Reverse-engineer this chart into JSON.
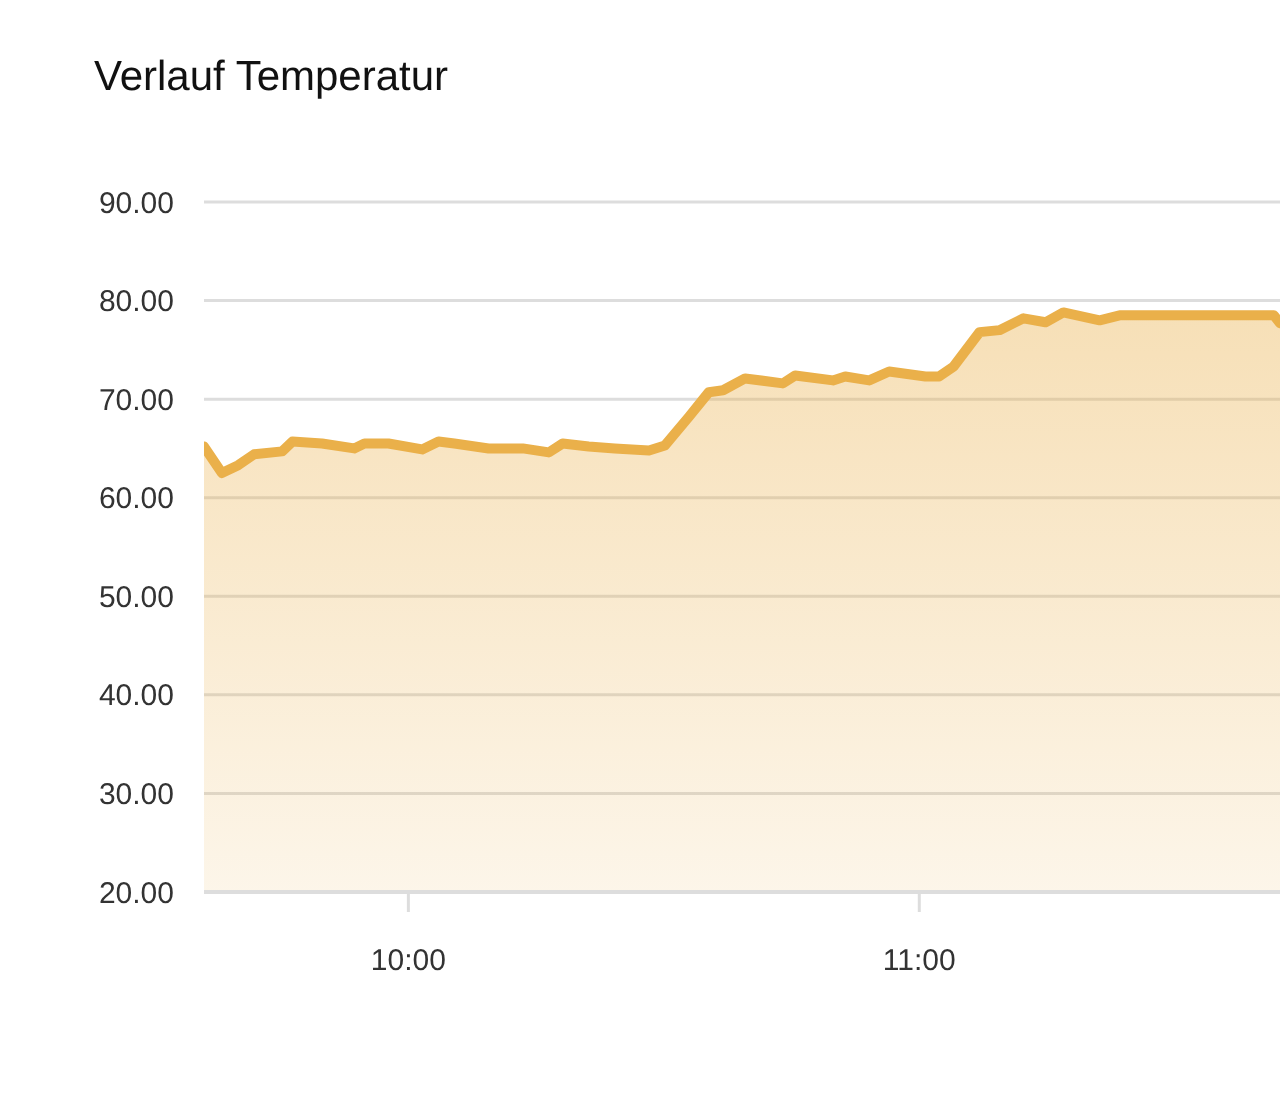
{
  "chart_data": {
    "type": "area",
    "title": "Verlauf Temperatur",
    "xlim": [
      9.6,
      11.706
    ],
    "xticks": [
      {
        "value": 10,
        "label": "10:00"
      },
      {
        "value": 11,
        "label": "11:00"
      }
    ],
    "ylim": [
      20,
      90
    ],
    "yticks": [
      {
        "value": 20,
        "label": "20.00"
      },
      {
        "value": 30,
        "label": "30.00"
      },
      {
        "value": 40,
        "label": "40.00"
      },
      {
        "value": 50,
        "label": "50.00"
      },
      {
        "value": 60,
        "label": "60.00"
      },
      {
        "value": 70,
        "label": "70.00"
      },
      {
        "value": 80,
        "label": "80.00"
      },
      {
        "value": 90,
        "label": "90.00"
      }
    ],
    "grid": "y",
    "marker": "none",
    "line_style": "solid",
    "series": [
      {
        "color": "#eab04a",
        "x": [
          9.6,
          9.635,
          9.667,
          9.698,
          9.753,
          9.773,
          9.831,
          9.894,
          9.914,
          9.961,
          10.027,
          10.059,
          10.09,
          10.157,
          10.224,
          10.275,
          10.302,
          10.353,
          10.404,
          10.471,
          10.502,
          10.549,
          10.588,
          10.616,
          10.659,
          10.733,
          10.757,
          10.831,
          10.855,
          10.902,
          10.941,
          11.012,
          11.039,
          11.067,
          11.118,
          11.157,
          11.204,
          11.247,
          11.282,
          11.353,
          11.392,
          11.694,
          11.706
        ],
        "values": [
          65.2,
          62.5,
          63.3,
          64.4,
          64.7,
          65.7,
          65.5,
          65,
          65.5,
          65.5,
          64.9,
          65.7,
          65.5,
          65,
          65,
          64.6,
          65.5,
          65.2,
          65,
          64.8,
          65.3,
          68.2,
          70.7,
          70.9,
          72.1,
          71.6,
          72.4,
          71.9,
          72.3,
          71.9,
          72.8,
          72.3,
          72.3,
          73.3,
          76.8,
          77,
          78.2,
          77.8,
          78.8,
          78,
          78.5,
          78.5,
          77.7
        ]
      }
    ]
  }
}
